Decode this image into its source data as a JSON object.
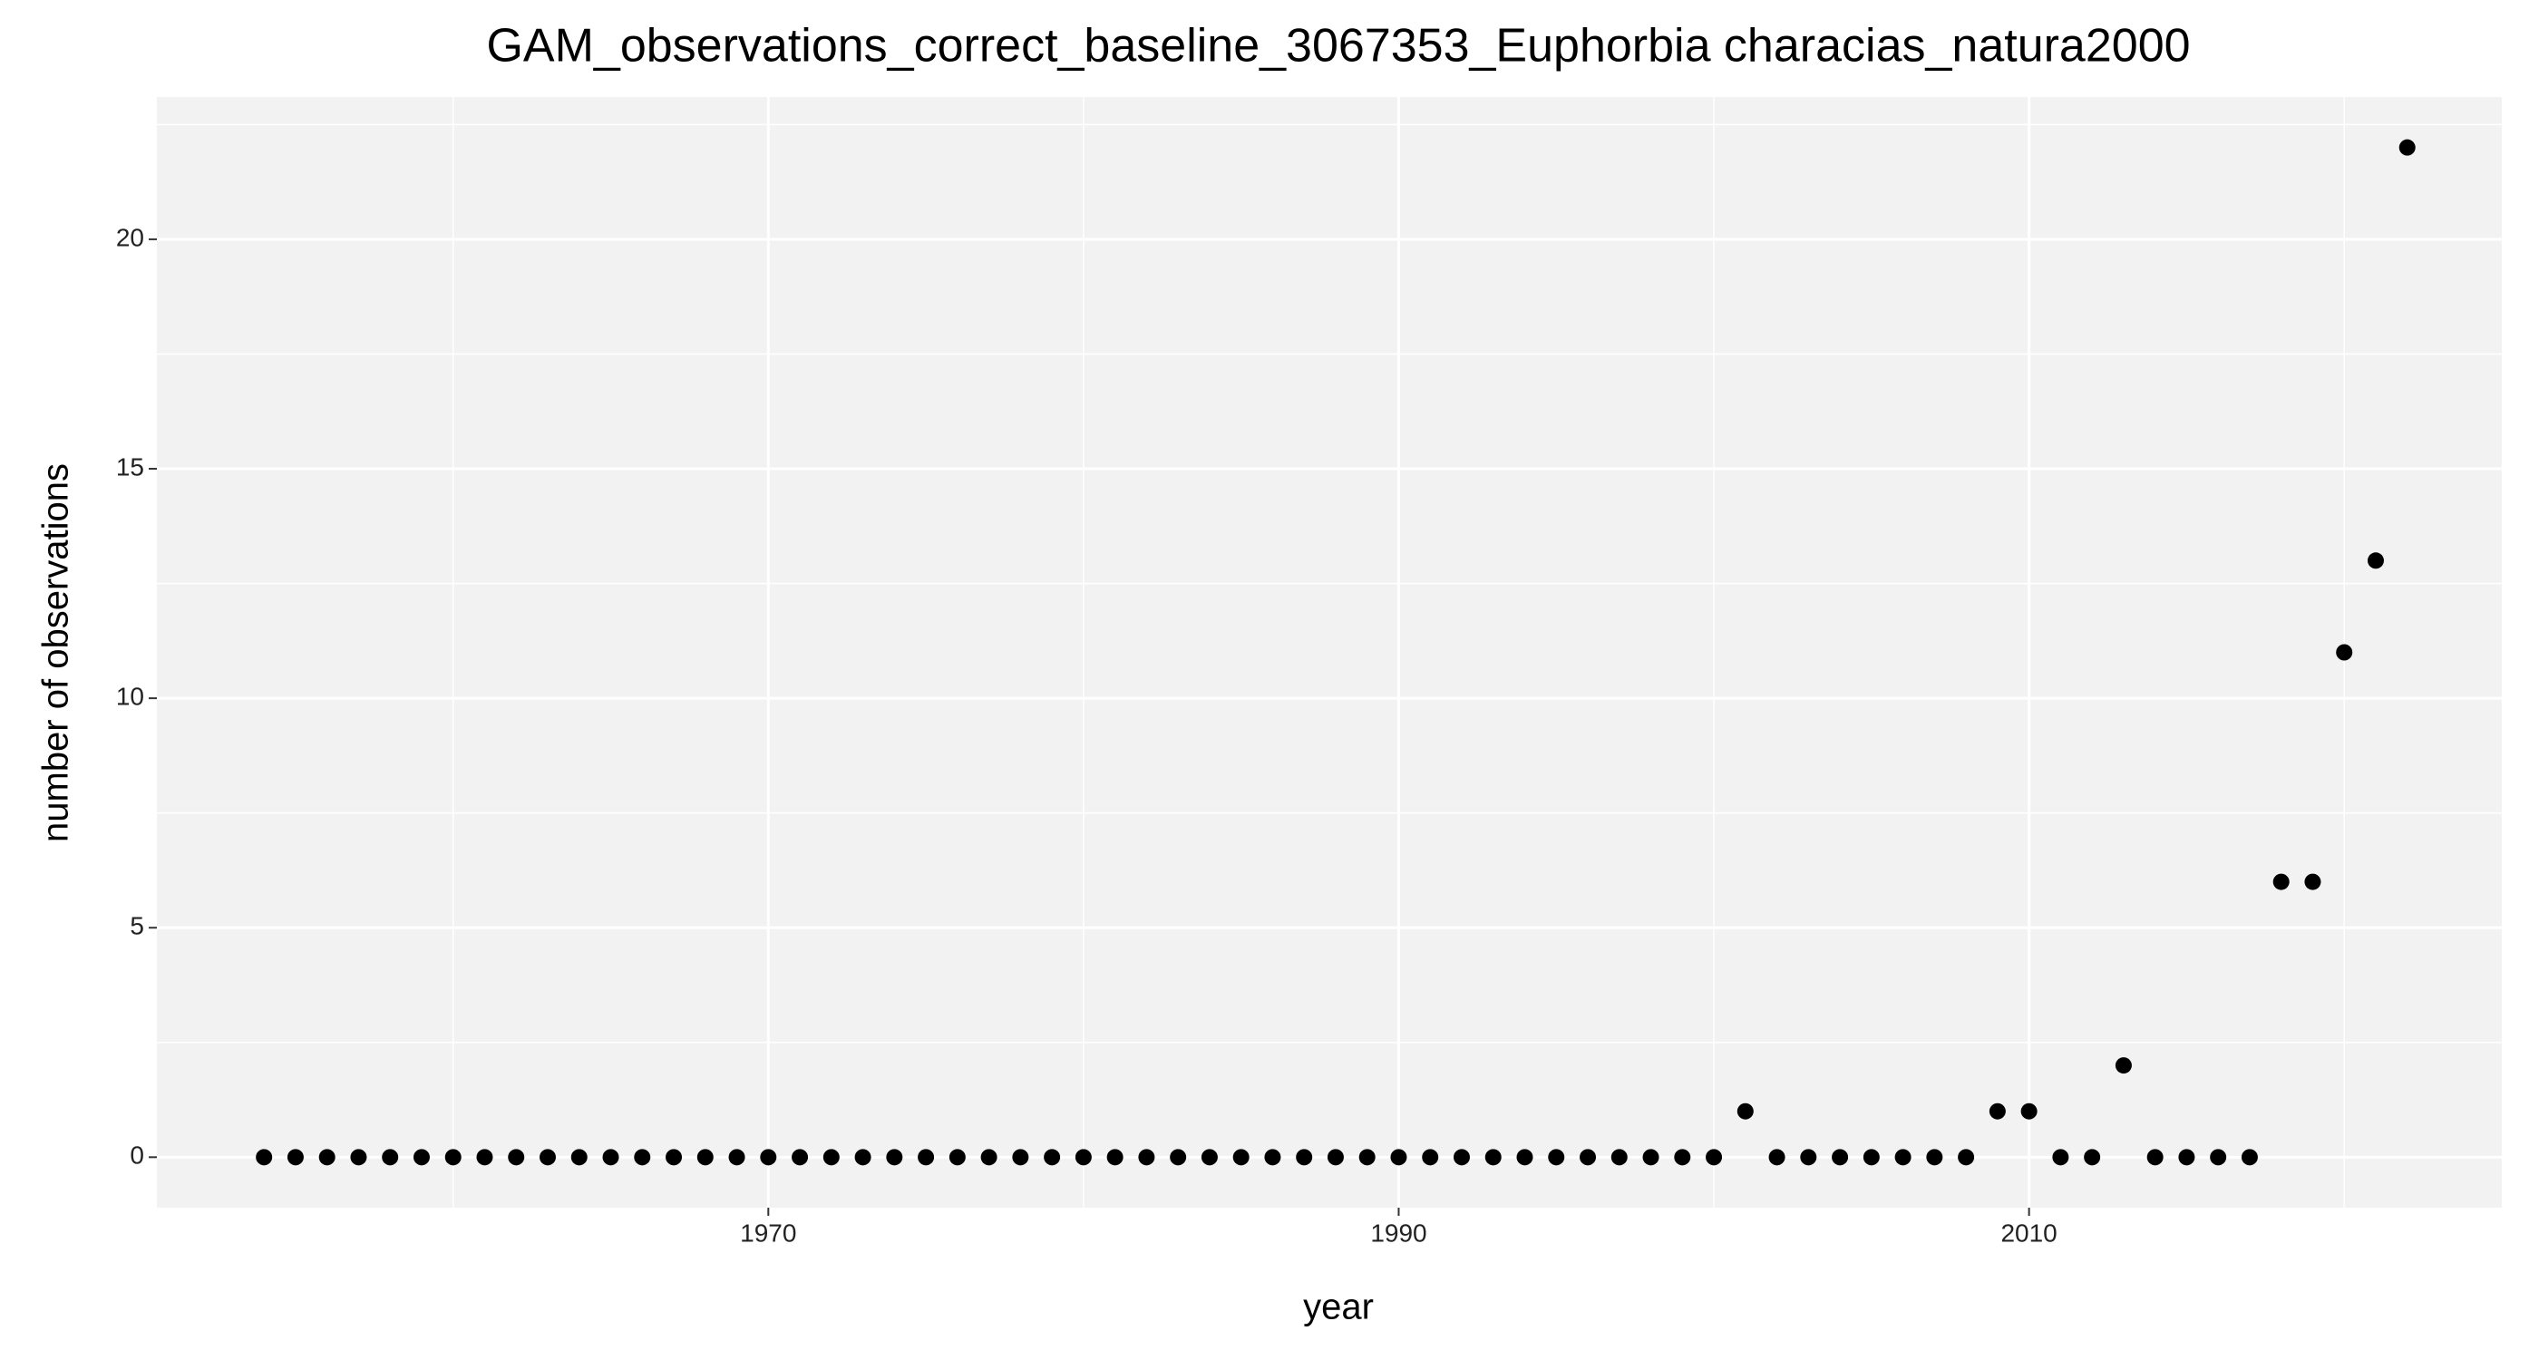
{
  "chart_data": {
    "type": "scatter",
    "title": "GAM_observations_correct_baseline_3067353_Euphorbia characias_natura2000",
    "x_label": "year",
    "y_label": "number of observations",
    "x": [
      1954,
      1955,
      1956,
      1957,
      1958,
      1959,
      1960,
      1961,
      1962,
      1963,
      1964,
      1965,
      1966,
      1967,
      1968,
      1969,
      1970,
      1971,
      1972,
      1973,
      1974,
      1975,
      1976,
      1977,
      1978,
      1979,
      1980,
      1981,
      1982,
      1983,
      1984,
      1985,
      1986,
      1987,
      1988,
      1989,
      1990,
      1991,
      1992,
      1993,
      1994,
      1995,
      1996,
      1997,
      1998,
      1999,
      2000,
      2001,
      2002,
      2003,
      2004,
      2005,
      2006,
      2007,
      2008,
      2009,
      2010,
      2011,
      2012,
      2013,
      2014,
      2015,
      2016,
      2017,
      2018,
      2019,
      2020,
      2021,
      2022
    ],
    "values": [
      0,
      0,
      0,
      0,
      0,
      0,
      0,
      0,
      0,
      0,
      0,
      0,
      0,
      0,
      0,
      0,
      0,
      0,
      0,
      0,
      0,
      0,
      0,
      0,
      0,
      0,
      0,
      0,
      0,
      0,
      0,
      0,
      0,
      0,
      0,
      0,
      0,
      0,
      0,
      0,
      0,
      0,
      0,
      0,
      0,
      0,
      0,
      1,
      0,
      0,
      0,
      0,
      0,
      0,
      0,
      1,
      1,
      0,
      0,
      2,
      0,
      0,
      0,
      0,
      6,
      6,
      11,
      13,
      22
    ],
    "color": "#000000",
    "xlim": [
      1950.6,
      2025.0
    ],
    "xticks": [
      1970,
      1990,
      2010
    ],
    "ylim": [
      -1.1,
      23.1
    ],
    "yticks": [
      0,
      5,
      10,
      15,
      20
    ],
    "grid": true
  }
}
